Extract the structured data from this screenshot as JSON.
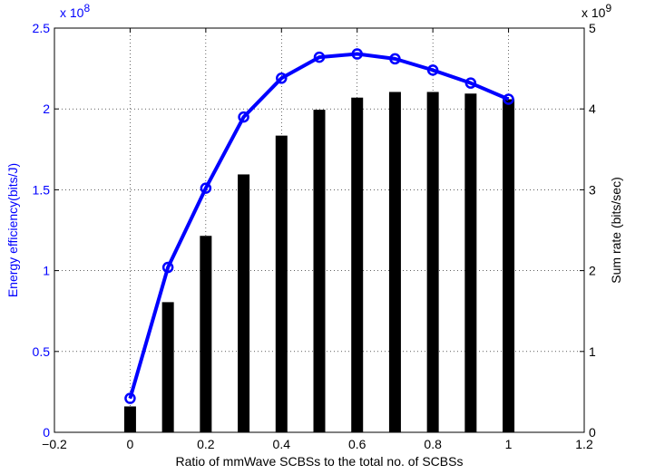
{
  "chart_data": {
    "type": "bar+line",
    "xlabel": "Ratio of mmWave SCBSs to the total no. of SCBSs",
    "x_ticks": [
      "−0.2",
      "0",
      "0.2",
      "0.4",
      "0.6",
      "0.8",
      "1",
      "1.2"
    ],
    "x_tick_values": [
      -0.2,
      0,
      0.2,
      0.4,
      0.6,
      0.8,
      1,
      1.2
    ],
    "xlim": [
      -0.2,
      1.2
    ],
    "grid": true,
    "left_axis": {
      "label": "Energy efficiency(bits/J)",
      "color": "#0000ff",
      "multiplier_base": "x 10",
      "multiplier_exp": "8",
      "ylim": [
        0,
        2.5
      ],
      "ticks": [
        "0",
        "0.5",
        "1",
        "1.5",
        "2",
        "2.5"
      ],
      "tick_values": [
        0,
        0.5,
        1,
        1.5,
        2,
        2.5
      ]
    },
    "right_axis": {
      "label": "Sum rate (bits/sec)",
      "color": "#000000",
      "multiplier_base": "x 10",
      "multiplier_exp": "9",
      "ylim": [
        0,
        5
      ],
      "ticks": [
        "0",
        "1",
        "2",
        "3",
        "4",
        "5"
      ],
      "tick_values": [
        0,
        1,
        2,
        3,
        4,
        5
      ]
    },
    "x": [
      0,
      0.1,
      0.2,
      0.3,
      0.4,
      0.5,
      0.6,
      0.7,
      0.8,
      0.9,
      1.0
    ],
    "series": [
      {
        "type": "line",
        "axis": "left",
        "color": "#0000ff",
        "values": [
          0.21,
          1.02,
          1.51,
          1.95,
          2.19,
          2.32,
          2.34,
          2.31,
          2.24,
          2.16,
          2.06
        ]
      },
      {
        "type": "bar",
        "axis": "right",
        "color": "#000000",
        "values": [
          0.32,
          1.61,
          2.43,
          3.19,
          3.67,
          3.99,
          4.14,
          4.21,
          4.21,
          4.19,
          4.12
        ]
      }
    ]
  }
}
